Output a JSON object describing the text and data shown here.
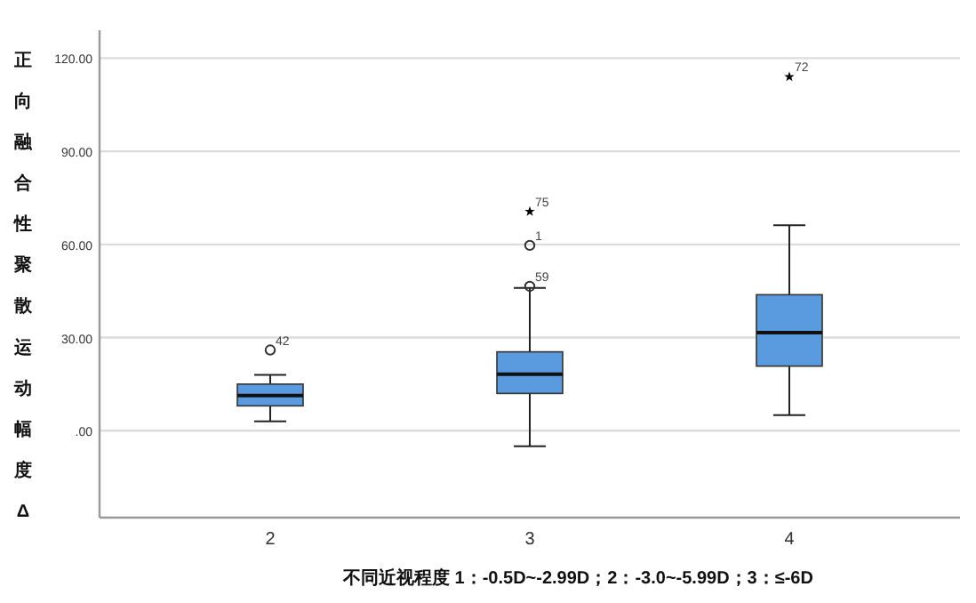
{
  "chart_data": {
    "type": "box",
    "categories": [
      "2",
      "3",
      "4"
    ],
    "xlabel": "不同近视程度 1：-0.5D~-2.99D；2：-3.0~-5.99D；3：≤-6D",
    "ylabel": "正向融合性聚散运动幅度Δ",
    "ylim": [
      -28,
      129
    ],
    "yticks": [
      {
        "value": 0,
        "label": ".00"
      },
      {
        "value": 30,
        "label": "30.00"
      },
      {
        "value": 60,
        "label": "60.00"
      },
      {
        "value": 90,
        "label": "90.00"
      },
      {
        "value": 120,
        "label": "120.00"
      }
    ],
    "grid": "y",
    "color": "#5a9be0",
    "boxes": [
      {
        "low": 3,
        "q1": 8,
        "median": 11.3,
        "q3": 15,
        "high": 18
      },
      {
        "low": -5,
        "q1": 12,
        "median": 18.2,
        "q3": 25.4,
        "high": 46
      },
      {
        "low": 5,
        "q1": 20.8,
        "median": 31.6,
        "q3": 43.8,
        "high": 66.2
      }
    ],
    "series": [
      {
        "type": "scatter",
        "marker": "circle",
        "color": "#333333",
        "x": [
          "2",
          "3",
          "3"
        ],
        "values": [
          26,
          46.5,
          59.7
        ]
      },
      {
        "type": "scatter",
        "marker": "star",
        "color": "#000000",
        "x": [
          "3",
          "4"
        ],
        "values": [
          70.6,
          114
        ]
      }
    ],
    "annotations": [
      {
        "text": "42",
        "x": "2",
        "y": 26
      },
      {
        "text": "59",
        "x": "3",
        "y": 46.5
      },
      {
        "text": "1",
        "x": "3",
        "y": 59.7
      },
      {
        "text": "75",
        "x": "3",
        "y": 70.6
      },
      {
        "text": "72",
        "x": "4",
        "y": 114
      }
    ]
  }
}
